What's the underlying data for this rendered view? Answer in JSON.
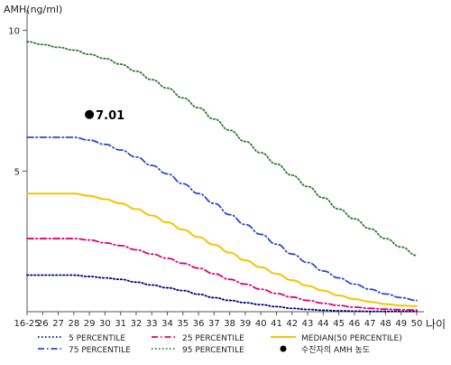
{
  "chart_data": {
    "type": "line",
    "ylabel": "AMH(ng/ml)",
    "xlabel": "나이",
    "ylim": [
      0,
      10.6
    ],
    "yticks": [
      5,
      10
    ],
    "grid": false,
    "legend_position": "bottom",
    "x": [
      "16-25",
      "26",
      "27",
      "28",
      "29",
      "30",
      "31",
      "32",
      "33",
      "34",
      "35",
      "36",
      "37",
      "38",
      "39",
      "40",
      "41",
      "42",
      "43",
      "44",
      "45",
      "46",
      "47",
      "48",
      "49",
      "50"
    ],
    "series": [
      {
        "name": "5 PERCENTILE",
        "color": "#000080",
        "dash": "dot",
        "values": [
          1.3,
          1.3,
          1.3,
          1.3,
          1.25,
          1.2,
          1.15,
          1.05,
          0.95,
          0.85,
          0.75,
          0.62,
          0.5,
          0.4,
          0.32,
          0.25,
          0.18,
          0.12,
          0.08,
          0.05,
          0.03,
          0.02,
          0.01,
          0.01,
          0.01,
          0.01
        ]
      },
      {
        "name": "25 PERCENTILE",
        "color": "#e0007a",
        "dash": "dashdot",
        "values": [
          2.6,
          2.6,
          2.6,
          2.6,
          2.55,
          2.45,
          2.35,
          2.2,
          2.05,
          1.9,
          1.72,
          1.55,
          1.35,
          1.15,
          0.98,
          0.8,
          0.65,
          0.52,
          0.4,
          0.3,
          0.22,
          0.16,
          0.12,
          0.09,
          0.07,
          0.06
        ]
      },
      {
        "name": "75 PERCENTILE",
        "color": "#2a4bcc",
        "dash": "dashdot",
        "values": [
          6.2,
          6.2,
          6.2,
          6.2,
          6.1,
          5.95,
          5.75,
          5.5,
          5.2,
          4.9,
          4.55,
          4.2,
          3.85,
          3.45,
          3.1,
          2.75,
          2.4,
          2.05,
          1.75,
          1.45,
          1.2,
          0.98,
          0.8,
          0.63,
          0.5,
          0.4
        ]
      },
      {
        "name": "95 PERCENTILE",
        "color": "#2e7d32",
        "dash": "dot",
        "values": [
          9.6,
          9.5,
          9.4,
          9.3,
          9.15,
          9.0,
          8.8,
          8.55,
          8.25,
          7.95,
          7.6,
          7.25,
          6.85,
          6.45,
          6.05,
          5.65,
          5.25,
          4.85,
          4.45,
          4.05,
          3.65,
          3.3,
          2.95,
          2.6,
          2.3,
          2.0
        ]
      },
      {
        "name": "MEDIAN(50 PERCENTILE)",
        "color": "#f5c400",
        "dash": "solid",
        "values": [
          4.2,
          4.2,
          4.2,
          4.2,
          4.12,
          4.0,
          3.85,
          3.65,
          3.42,
          3.18,
          2.92,
          2.65,
          2.38,
          2.1,
          1.83,
          1.58,
          1.35,
          1.12,
          0.92,
          0.75,
          0.58,
          0.45,
          0.35,
          0.27,
          0.22,
          0.2
        ]
      }
    ],
    "marker": {
      "name": "수진자의 AMH 농도",
      "x": "29",
      "y": 7.01,
      "label": "7.01"
    }
  }
}
